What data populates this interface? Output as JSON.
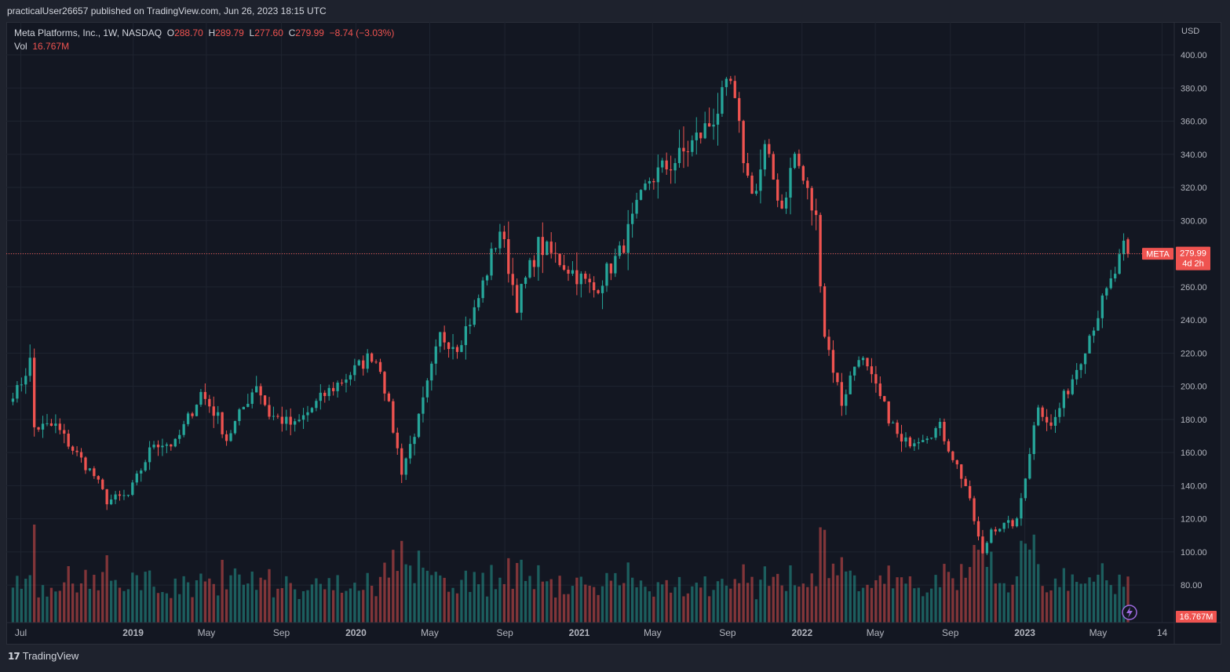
{
  "header": {
    "published_text": "practicalUser26657 published on TradingView.com, Jun 26, 2023 18:15 UTC"
  },
  "legend": {
    "symbol": "Meta Platforms, Inc., 1W, NASDAQ",
    "open_label": "O",
    "open": "288.70",
    "high_label": "H",
    "high": "289.79",
    "low_label": "L",
    "low": "277.60",
    "close_label": "C",
    "close": "279.99",
    "change": "−8.74 (−3.03%)",
    "vol_label": "Vol",
    "vol": "16.767M"
  },
  "price_axis": {
    "currency": "USD",
    "ticks": [
      "400.00",
      "380.00",
      "360.00",
      "340.00",
      "320.00",
      "300.00",
      "280.00",
      "260.00",
      "240.00",
      "220.00",
      "200.00",
      "180.00",
      "160.00",
      "140.00",
      "120.00",
      "100.00",
      "80.00"
    ]
  },
  "last_price": {
    "symbol": "META",
    "price": "279.99",
    "countdown": "4d 2h",
    "volume": "16.767M"
  },
  "time_axis": {
    "labels": [
      "Jul",
      "2019",
      "May",
      "Sep",
      "2020",
      "May",
      "Sep",
      "2021",
      "May",
      "Sep",
      "2022",
      "May",
      "Sep",
      "2023",
      "May",
      "14"
    ]
  },
  "footer": {
    "brand": "TradingView",
    "logo_glyph": "17"
  },
  "colors": {
    "up": "#26a69a",
    "down": "#ef5350",
    "background": "#131722",
    "grid": "#1f2430"
  },
  "chart_data": {
    "type": "candlestick",
    "interval": "1W",
    "x_range": [
      "2018-06",
      "2023-06"
    ],
    "y_range": [
      70,
      410
    ],
    "anchors": [
      [
        "2018-06-25",
        197
      ],
      [
        "2018-07-16",
        215
      ],
      [
        "2018-07-23",
        175
      ],
      [
        "2018-08-27",
        176
      ],
      [
        "2018-09-24",
        162
      ],
      [
        "2018-10-29",
        146
      ],
      [
        "2018-11-19",
        131
      ],
      [
        "2018-12-24",
        134
      ],
      [
        "2019-01-14",
        150
      ],
      [
        "2019-02-04",
        166
      ],
      [
        "2019-03-11",
        165
      ],
      [
        "2019-04-22",
        196
      ],
      [
        "2019-05-20",
        181
      ],
      [
        "2019-06-03",
        168
      ],
      [
        "2019-07-22",
        202
      ],
      [
        "2019-08-12",
        183
      ],
      [
        "2019-09-23",
        176
      ],
      [
        "2019-11-11",
        195
      ],
      [
        "2020-01-06",
        212
      ],
      [
        "2020-01-27",
        219
      ],
      [
        "2020-02-10",
        212
      ],
      [
        "2020-03-16",
        149
      ],
      [
        "2020-04-13",
        180
      ],
      [
        "2020-05-18",
        230
      ],
      [
        "2020-06-15",
        225
      ],
      [
        "2020-07-13",
        245
      ],
      [
        "2020-08-24",
        295
      ],
      [
        "2020-09-21",
        250
      ],
      [
        "2020-10-26",
        285
      ],
      [
        "2020-11-30",
        276
      ],
      [
        "2021-01-25",
        258
      ],
      [
        "2021-03-08",
        280
      ],
      [
        "2021-04-26",
        325
      ],
      [
        "2021-06-14",
        338
      ],
      [
        "2021-08-02",
        358
      ],
      [
        "2021-09-06",
        382
      ],
      [
        "2021-10-04",
        325
      ],
      [
        "2021-10-18",
        318
      ],
      [
        "2021-11-01",
        342
      ],
      [
        "2021-11-29",
        308
      ],
      [
        "2021-12-20",
        340
      ],
      [
        "2022-01-24",
        300
      ],
      [
        "2022-02-07",
        232
      ],
      [
        "2022-03-07",
        190
      ],
      [
        "2022-04-04",
        220
      ],
      [
        "2022-05-02",
        198
      ],
      [
        "2022-06-13",
        165
      ],
      [
        "2022-08-15",
        175
      ],
      [
        "2022-09-26",
        140
      ],
      [
        "2022-10-24",
        98
      ],
      [
        "2022-11-07",
        114
      ],
      [
        "2022-12-19",
        118
      ],
      [
        "2023-01-23",
        190
      ],
      [
        "2023-02-13",
        175
      ],
      [
        "2023-03-20",
        205
      ],
      [
        "2023-04-24",
        238
      ],
      [
        "2023-05-22",
        262
      ],
      [
        "2023-06-12",
        282
      ],
      [
        "2023-06-19",
        280
      ]
    ],
    "last_candle": {
      "date": "2023-06-19",
      "open": 288.7,
      "high": 289.79,
      "low": 277.6,
      "close": 279.99,
      "volume": "16.767M"
    },
    "volume_panel": true,
    "grid": true
  }
}
